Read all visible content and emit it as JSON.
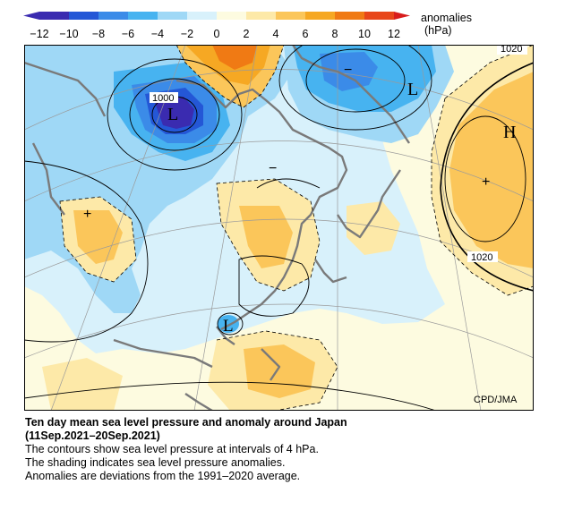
{
  "colorbar": {
    "title": "anomalies",
    "unit": "(hPa)",
    "ticks": [
      "−12",
      "−10",
      "−8",
      "−6",
      "−4",
      "−2",
      "0",
      "2",
      "4",
      "6",
      "8",
      "10",
      "12"
    ],
    "colors": [
      "#3a2bb0",
      "#2457d6",
      "#3b8be8",
      "#47b3f0",
      "#9fd8f6",
      "#d8f1fb",
      "#fdfbe0",
      "#fde9a8",
      "#fbc65a",
      "#f6a823",
      "#f07a14",
      "#e8461a",
      "#d81c1c"
    ]
  },
  "map": {
    "credit": "CPD/JMA",
    "contour_labels": [
      "1000",
      "1020",
      "1020"
    ],
    "pressure_centers": [
      "L",
      "L",
      "H",
      "L"
    ],
    "anomaly_marks": [
      "−",
      "−",
      "+",
      "+"
    ],
    "colors": {
      "coast": "#7a7a7a",
      "contour": "#000000",
      "grid": "#9a9a9a"
    }
  },
  "caption": {
    "title": "Ten day mean sea level pressure and anomaly around Japan",
    "period": "(11Sep.2021–20Sep.2021)",
    "line1": "The contours show sea level pressure at intervals of 4 hPa.",
    "line2": "The shading indicates sea level pressure anomalies.",
    "line3": "Anomalies are deviations from the 1991–2020 average."
  }
}
